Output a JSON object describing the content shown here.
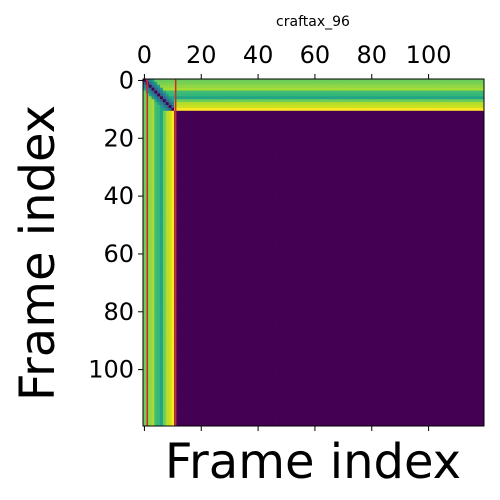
{
  "chart_data": {
    "type": "heatmap",
    "title": "craftax_96",
    "xlabel": "Frame index",
    "ylabel": "Frame index",
    "n": 120,
    "active_frames": 11,
    "x_ticks": [
      0,
      20,
      40,
      60,
      80,
      100
    ],
    "y_ticks": [
      0,
      20,
      40,
      60,
      80,
      100
    ],
    "xlim": [
      -0.5,
      119.5
    ],
    "ylim": [
      119.5,
      -0.5
    ],
    "colormap": "viridis",
    "cells": {
      "self_similarity": "#440154",
      "active_vs_padding": "#fde725",
      "padding_vs_padding": "#440154"
    },
    "active_row_band_colors": [
      "#6ccd5a",
      "#7ad151",
      "#8fd744",
      "#a5db36",
      "#3fbc73",
      "#35b779",
      "#20a486",
      "#6ccd5a",
      "#b5de2b",
      "#c8e020",
      "#5ec962"
    ],
    "near_diagonal_colors": [
      "#31688e",
      "#26828e",
      "#1f9e89"
    ],
    "markers": {
      "type": "vertical-lines",
      "color": "#d62728",
      "x": [
        1,
        11
      ]
    }
  }
}
